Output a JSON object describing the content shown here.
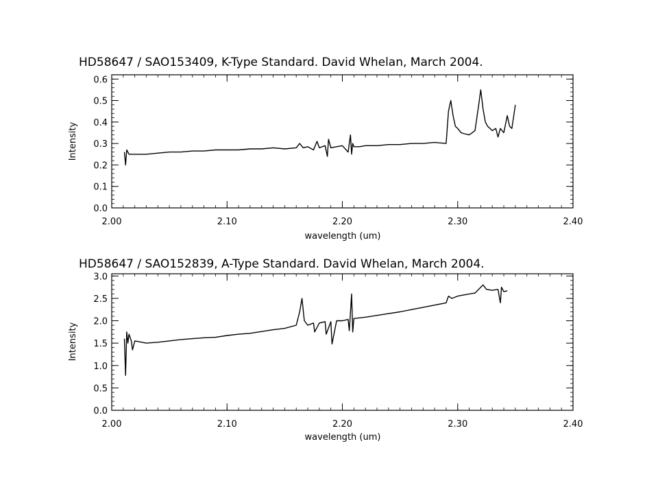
{
  "chart_data": [
    {
      "type": "line",
      "title": "HD58647 / SAO153409, K-Type Standard.  David Whelan, March 2004.",
      "xlabel": "wavelength (um)",
      "ylabel": "Intensity",
      "xlim": [
        2.0,
        2.4
      ],
      "ylim": [
        0.0,
        0.62
      ],
      "xticks": [
        "2.00",
        "2.10",
        "2.20",
        "2.30",
        "2.40"
      ],
      "yticks": [
        "0.0",
        "0.1",
        "0.2",
        "0.3",
        "0.4",
        "0.5",
        "0.6"
      ],
      "x": [
        2.011,
        2.012,
        2.013,
        2.015,
        2.02,
        2.03,
        2.04,
        2.05,
        2.06,
        2.07,
        2.08,
        2.09,
        2.1,
        2.11,
        2.12,
        2.13,
        2.14,
        2.15,
        2.16,
        2.163,
        2.166,
        2.17,
        2.175,
        2.178,
        2.18,
        2.185,
        2.187,
        2.188,
        2.19,
        2.195,
        2.2,
        2.205,
        2.207,
        2.208,
        2.209,
        2.21,
        2.215,
        2.22,
        2.23,
        2.24,
        2.25,
        2.26,
        2.27,
        2.28,
        2.29,
        2.292,
        2.294,
        2.296,
        2.298,
        2.3,
        2.303,
        2.306,
        2.31,
        2.315,
        2.318,
        2.32,
        2.322,
        2.324,
        2.326,
        2.328,
        2.33,
        2.333,
        2.335,
        2.337,
        2.34,
        2.343,
        2.345,
        2.347,
        2.35
      ],
      "series": [
        {
          "values": [
            0.26,
            0.2,
            0.27,
            0.25,
            0.25,
            0.25,
            0.255,
            0.26,
            0.26,
            0.265,
            0.265,
            0.27,
            0.27,
            0.27,
            0.275,
            0.275,
            0.28,
            0.275,
            0.28,
            0.3,
            0.28,
            0.285,
            0.27,
            0.31,
            0.28,
            0.29,
            0.24,
            0.32,
            0.28,
            0.285,
            0.29,
            0.26,
            0.34,
            0.25,
            0.3,
            0.285,
            0.285,
            0.29,
            0.29,
            0.295,
            0.295,
            0.3,
            0.3,
            0.305,
            0.3,
            0.45,
            0.5,
            0.43,
            0.38,
            0.37,
            0.35,
            0.345,
            0.34,
            0.36,
            0.47,
            0.55,
            0.46,
            0.4,
            0.38,
            0.37,
            0.36,
            0.37,
            0.33,
            0.37,
            0.35,
            0.43,
            0.38,
            0.37,
            0.48
          ]
        }
      ]
    },
    {
      "type": "line",
      "title": "HD58647 / SAO152839, A-Type Standard.  David Whelan, March 2004.",
      "xlabel": "wavelength (um)",
      "ylabel": "Intensity",
      "xlim": [
        2.0,
        2.4
      ],
      "ylim": [
        0.0,
        3.05
      ],
      "xticks": [
        "2.00",
        "2.10",
        "2.20",
        "2.30",
        "2.40"
      ],
      "yticks": [
        "0.0",
        "0.5",
        "1.0",
        "1.5",
        "2.0",
        "2.5",
        "3.0"
      ],
      "x": [
        2.011,
        2.012,
        2.013,
        2.014,
        2.015,
        2.017,
        2.018,
        2.02,
        2.03,
        2.04,
        2.05,
        2.06,
        2.07,
        2.08,
        2.09,
        2.1,
        2.11,
        2.12,
        2.13,
        2.14,
        2.15,
        2.16,
        2.163,
        2.165,
        2.167,
        2.17,
        2.175,
        2.176,
        2.18,
        2.185,
        2.186,
        2.19,
        2.191,
        2.195,
        2.2,
        2.205,
        2.206,
        2.208,
        2.209,
        2.21,
        2.22,
        2.23,
        2.24,
        2.25,
        2.26,
        2.27,
        2.28,
        2.29,
        2.292,
        2.295,
        2.3,
        2.31,
        2.315,
        2.32,
        2.322,
        2.325,
        2.33,
        2.335,
        2.337,
        2.338,
        2.34,
        2.343
      ],
      "series": [
        {
          "values": [
            1.6,
            0.78,
            1.75,
            1.5,
            1.7,
            1.55,
            1.35,
            1.55,
            1.5,
            1.52,
            1.55,
            1.58,
            1.6,
            1.62,
            1.63,
            1.67,
            1.7,
            1.72,
            1.76,
            1.8,
            1.83,
            1.9,
            2.2,
            2.5,
            2.0,
            1.9,
            1.95,
            1.75,
            1.95,
            1.98,
            1.7,
            1.98,
            1.48,
            2.0,
            2.0,
            2.03,
            1.78,
            2.6,
            1.75,
            2.05,
            2.08,
            2.12,
            2.16,
            2.2,
            2.25,
            2.3,
            2.35,
            2.4,
            2.55,
            2.5,
            2.55,
            2.6,
            2.62,
            2.75,
            2.8,
            2.7,
            2.68,
            2.7,
            2.4,
            2.75,
            2.65,
            2.67
          ]
        }
      ]
    }
  ]
}
